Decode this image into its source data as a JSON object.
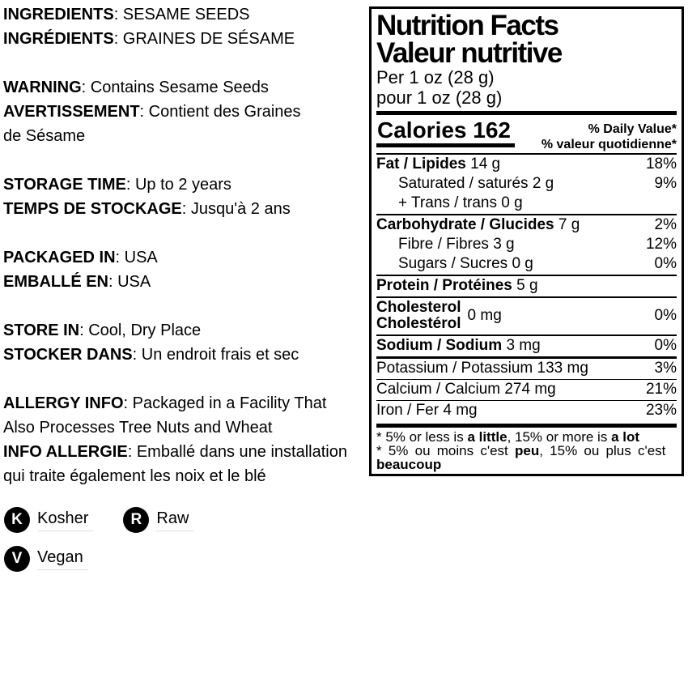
{
  "page": {
    "background": "#ffffff",
    "text_color": "#000000"
  },
  "left": {
    "paras": [
      {
        "lines": [
          {
            "b": "INGREDIENTS",
            "r": ": SESAME SEEDS"
          },
          {
            "b": "INGRÉDIENTS",
            "r": ": GRAINES DE SÉSAME"
          }
        ]
      },
      {
        "lines": [
          {
            "b": "WARNING",
            "r": ": Contains Sesame Seeds"
          },
          {
            "b": "AVERTISSEMENT",
            "r": ": Contient des Graines"
          },
          {
            "b": "",
            "r": "de Sésame"
          }
        ]
      },
      {
        "lines": [
          {
            "b": "STORAGE TIME",
            "r": ": Up to 2 years"
          },
          {
            "b": "TEMPS DE STOCKAGE",
            "r": ": Jusqu'à 2 ans"
          }
        ]
      },
      {
        "lines": [
          {
            "b": "PACKAGED IN",
            "r": ": USA"
          },
          {
            "b": "EMBALLÉ EN",
            "r": ": USA"
          }
        ]
      },
      {
        "lines": [
          {
            "b": "STORE IN",
            "r": ": Cool, Dry Place"
          },
          {
            "b": "STOCKER DANS",
            "r": ": Un endroit frais et sec"
          }
        ]
      },
      {
        "lines": [
          {
            "b": "ALLERGY INFO",
            "r": ": Packaged in a Facility That"
          },
          {
            "b": "",
            "r": "Also Processes Tree Nuts and Wheat"
          },
          {
            "b": "INFO ALLERGIE",
            "r": ": Emballé dans une installation"
          },
          {
            "b": "",
            "r": "qui traite également les noix et le blé"
          }
        ]
      }
    ]
  },
  "badges": {
    "circle_color": "#000000",
    "letter_color": "#ffffff",
    "items": [
      {
        "letter": "K",
        "label": "Kosher"
      },
      {
        "letter": "R",
        "label": "Raw"
      },
      {
        "letter": "V",
        "label": "Vegan"
      }
    ]
  },
  "nutrition": {
    "title_en": "Nutrition Facts",
    "title_fr": "Valeur nutritive",
    "serving_en": "Per 1 oz (28 g)",
    "serving_fr": "pour 1 oz (28 g)",
    "calories_label": "Calories",
    "calories_value": "162",
    "daily_value_en": "% Daily Value*",
    "daily_value_fr": "% valeur quotidienne*",
    "rows": [
      {
        "bold": "Fat / Lipides",
        "rest": " 14 g",
        "pct": "18%"
      },
      {
        "bold": "",
        "rest": "Saturated / saturés 2 g",
        "pct": "9%"
      },
      {
        "bold": "",
        "rest": "+ Trans / trans 0 g",
        "pct": ""
      },
      {
        "bold": "Carbohydrate / Glucides",
        "rest": " 7 g",
        "pct": "2%"
      },
      {
        "bold": "",
        "rest": "Fibre / Fibres 3 g",
        "pct": "12%"
      },
      {
        "bold": "",
        "rest": "Sugars / Sucres 0 g",
        "pct": "0%"
      },
      {
        "bold": "Protein / Protéines",
        "rest": " 5 g",
        "pct": ""
      },
      {
        "bold": "Sodium / Sodium",
        "rest": " 3 mg",
        "pct": "0%"
      },
      {
        "bold": "",
        "rest": "Potassium / Potassium 133 mg",
        "pct": "3%"
      },
      {
        "bold": "",
        "rest": "Calcium / Calcium 274 mg",
        "pct": "21%"
      },
      {
        "bold": "",
        "rest": "Iron / Fer 4 mg",
        "pct": "23%"
      }
    ],
    "cholesterol": {
      "name_en": "Cholesterol",
      "name_fr": "Cholestérol",
      "amount": "0 mg",
      "pct": "0%"
    },
    "footnote_en": {
      "p1": "* 5% or less is ",
      "b1": "a little",
      "p2": ", 15% or more is ",
      "b2": "a lot"
    },
    "footnote_fr": {
      "p1": "* 5% ou moins c'est ",
      "b1": "peu",
      "p2": ", 15% ou plus c'est ",
      "b2": "beaucoup"
    }
  }
}
